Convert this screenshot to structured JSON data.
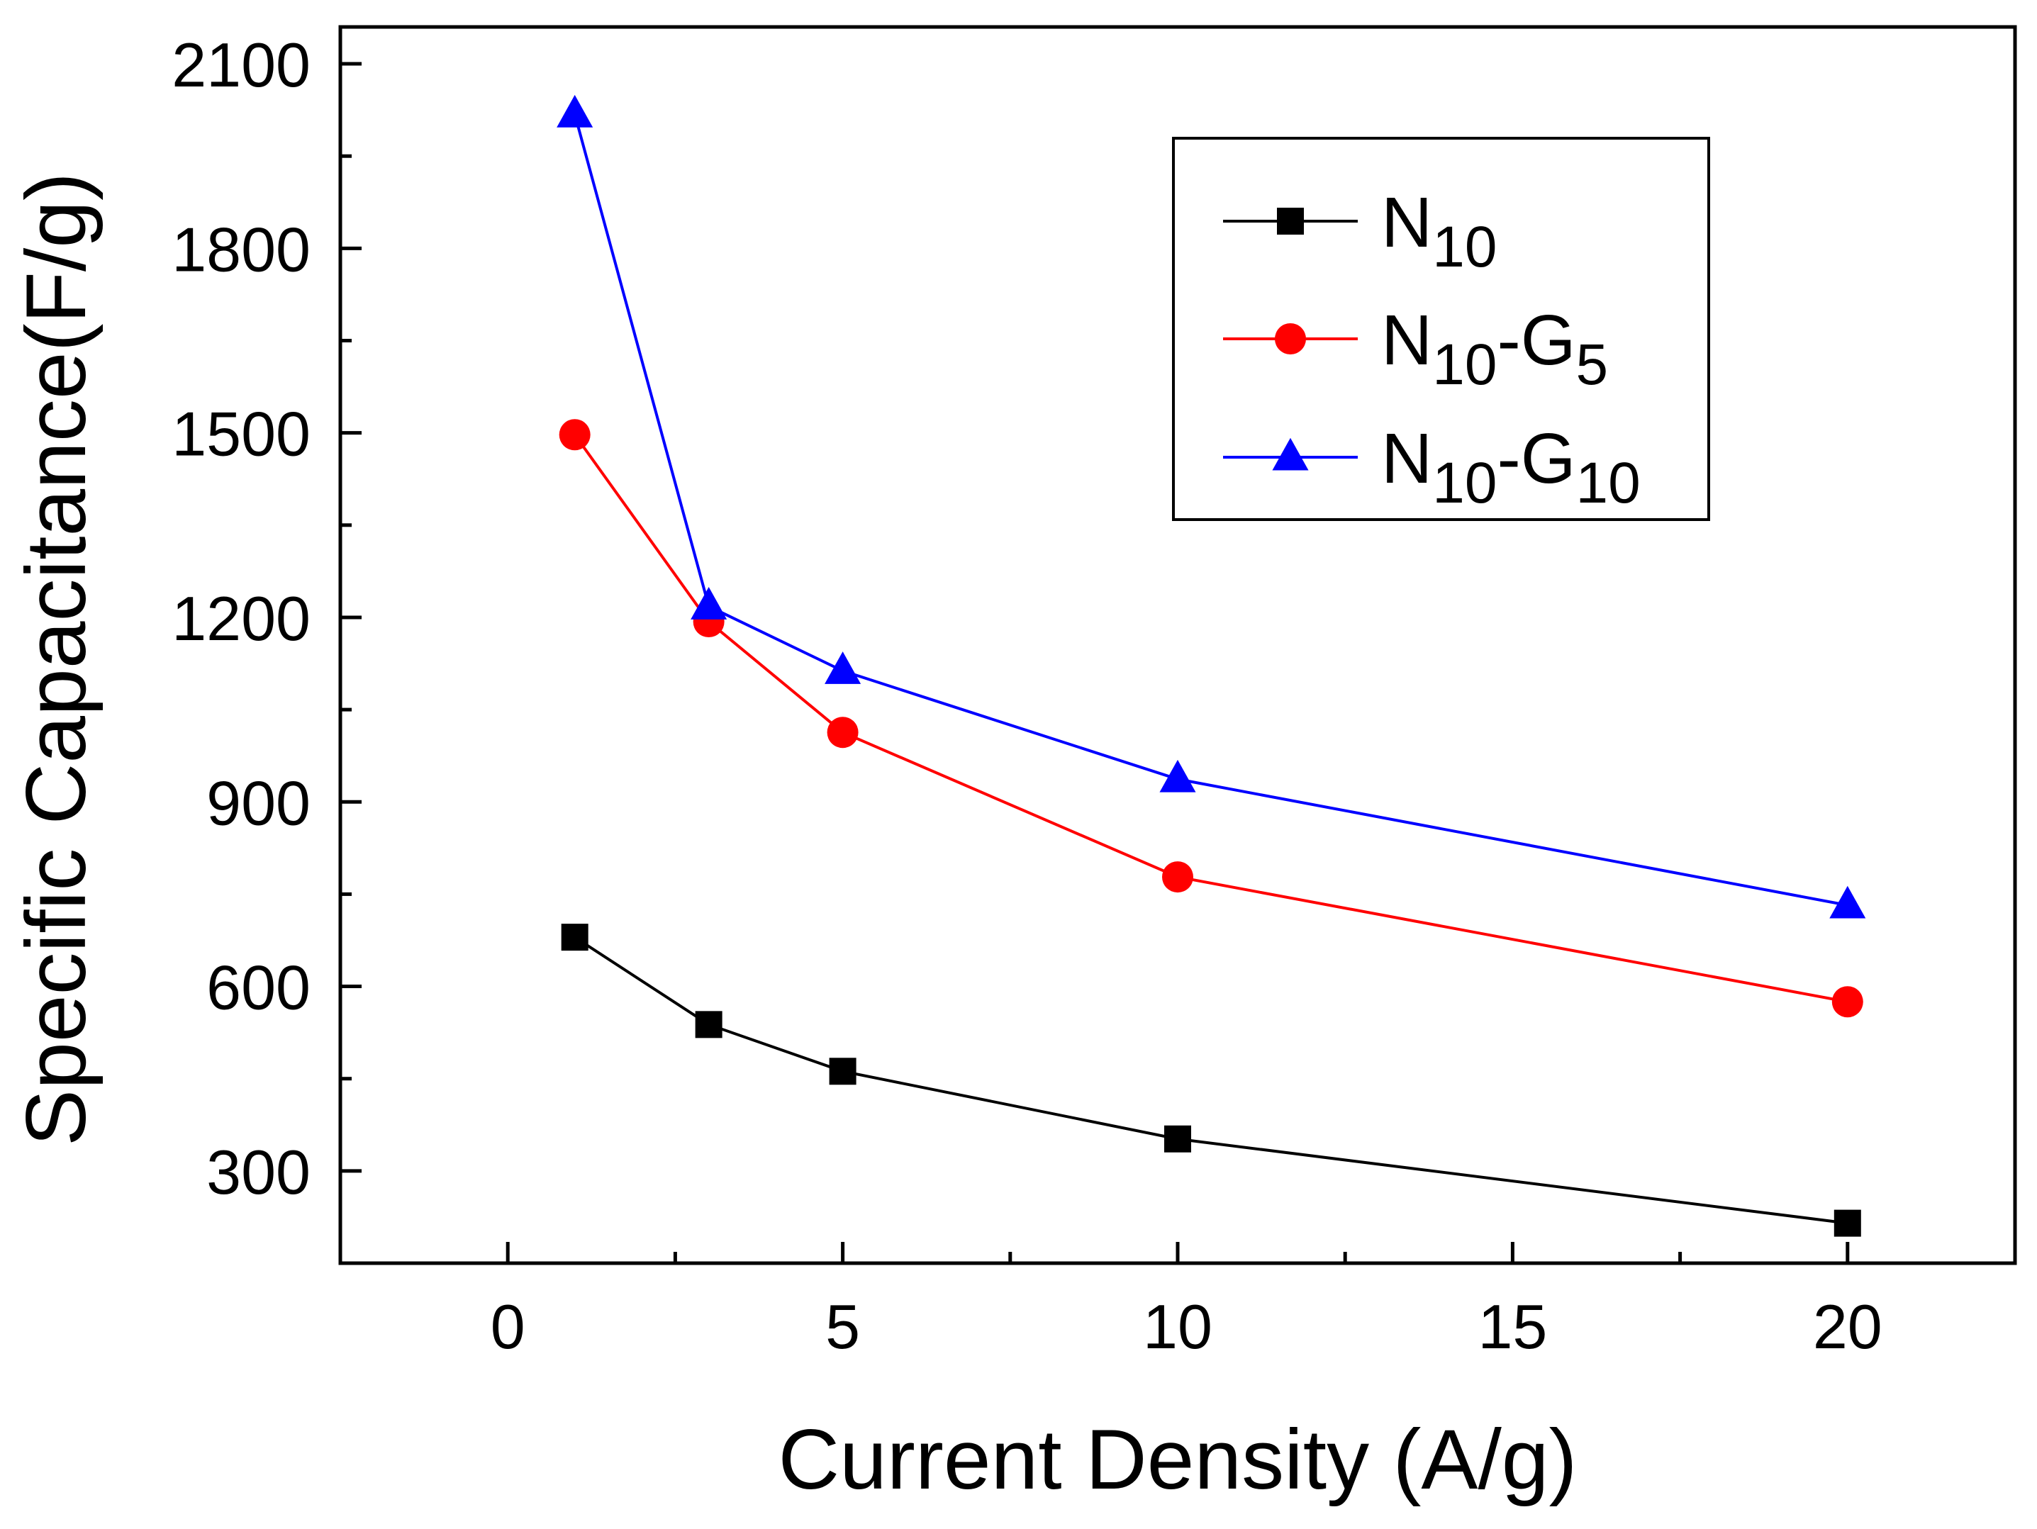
{
  "chart_data": {
    "type": "line",
    "title": "",
    "xlabel": "Current Density (A/g)",
    "ylabel": "Specific Capacitance(F/g)",
    "xlim": [
      -2.5,
      22.5
    ],
    "ylim": [
      150,
      2160
    ],
    "xticks": [
      0,
      5,
      10,
      15,
      20
    ],
    "xticks_minor": [
      2.5,
      7.5,
      12.5,
      17.5
    ],
    "yticks": [
      300,
      600,
      900,
      1200,
      1500,
      1800,
      2100
    ],
    "yticks_minor": [
      450,
      750,
      1050,
      1350,
      1650,
      1950
    ],
    "grid": false,
    "legend_position": "top-right",
    "series": [
      {
        "name": "N10",
        "legend_base": "N",
        "legend_sub1": "10",
        "legend_mid": "",
        "legend_sub2": "",
        "color": "#000000",
        "marker": "square",
        "x": [
          1,
          3,
          5,
          10,
          20
        ],
        "values": [
          680,
          538,
          462,
          352,
          215
        ]
      },
      {
        "name": "N10-G5",
        "legend_base": "N",
        "legend_sub1": "10",
        "legend_mid": "-G",
        "legend_sub2": "5",
        "color": "#ff0000",
        "marker": "circle",
        "x": [
          1,
          3,
          5,
          10,
          20
        ],
        "values": [
          1497,
          1193,
          1013,
          778,
          575
        ]
      },
      {
        "name": "N10-G10",
        "legend_base": "N",
        "legend_sub1": "10",
        "legend_mid": "-G",
        "legend_sub2": "10",
        "color": "#0000ff",
        "marker": "triangle",
        "x": [
          1,
          3,
          5,
          10,
          20
        ],
        "values": [
          2018,
          1218,
          1113,
          937,
          732
        ]
      }
    ]
  }
}
